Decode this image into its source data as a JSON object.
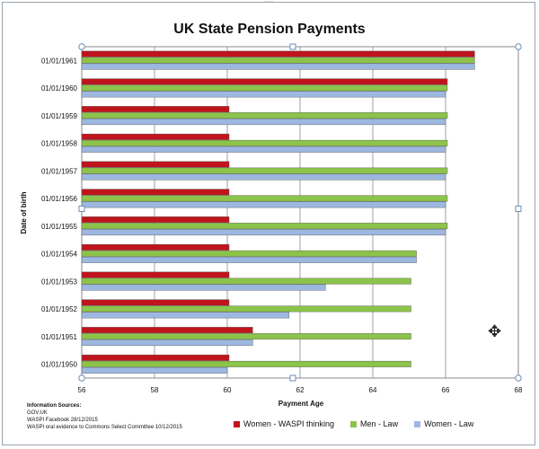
{
  "chart_data": {
    "type": "bar",
    "orientation": "horizontal",
    "title": "UK State Pension Payments",
    "xlabel": "Payment Age",
    "ylabel": "Date of birth",
    "xlim": [
      56,
      68
    ],
    "x_ticks": [
      "56",
      "58",
      "60",
      "62",
      "64",
      "66",
      "68"
    ],
    "grid": true,
    "categories": [
      "01/01/1950",
      "01/01/1951",
      "01/01/1952",
      "01/01/1953",
      "01/01/1954",
      "01/01/1955",
      "01/01/1956",
      "01/01/1957",
      "01/01/1958",
      "01/01/1959",
      "01/01/1960",
      "01/01/1961"
    ],
    "series": [
      {
        "name": "Women - WASPI thinking",
        "color": "#c0141c",
        "values": [
          60.05,
          60.7,
          60.05,
          60.05,
          60.05,
          60.05,
          60.05,
          60.05,
          60.05,
          60.05,
          66.05,
          66.8
        ]
      },
      {
        "name": "Men - Law",
        "color": "#8cc34a",
        "values": [
          65.05,
          65.05,
          65.05,
          65.05,
          65.2,
          66.05,
          66.05,
          66.05,
          66.05,
          66.05,
          66.05,
          66.8
        ]
      },
      {
        "name": "Women - Law",
        "color": "#9db8e0",
        "values": [
          60.0,
          60.7,
          61.7,
          62.7,
          65.2,
          66.0,
          66.0,
          66.0,
          66.0,
          66.0,
          66.0,
          66.8
        ]
      }
    ],
    "legend_position": "bottom"
  },
  "sources": {
    "heading": "Information Sources:",
    "lines": [
      "GOV.UK",
      "WASPI Facebook 28/12/2015",
      "WASPI oral evidence to Commons Select Committee 10/12/2015"
    ]
  }
}
